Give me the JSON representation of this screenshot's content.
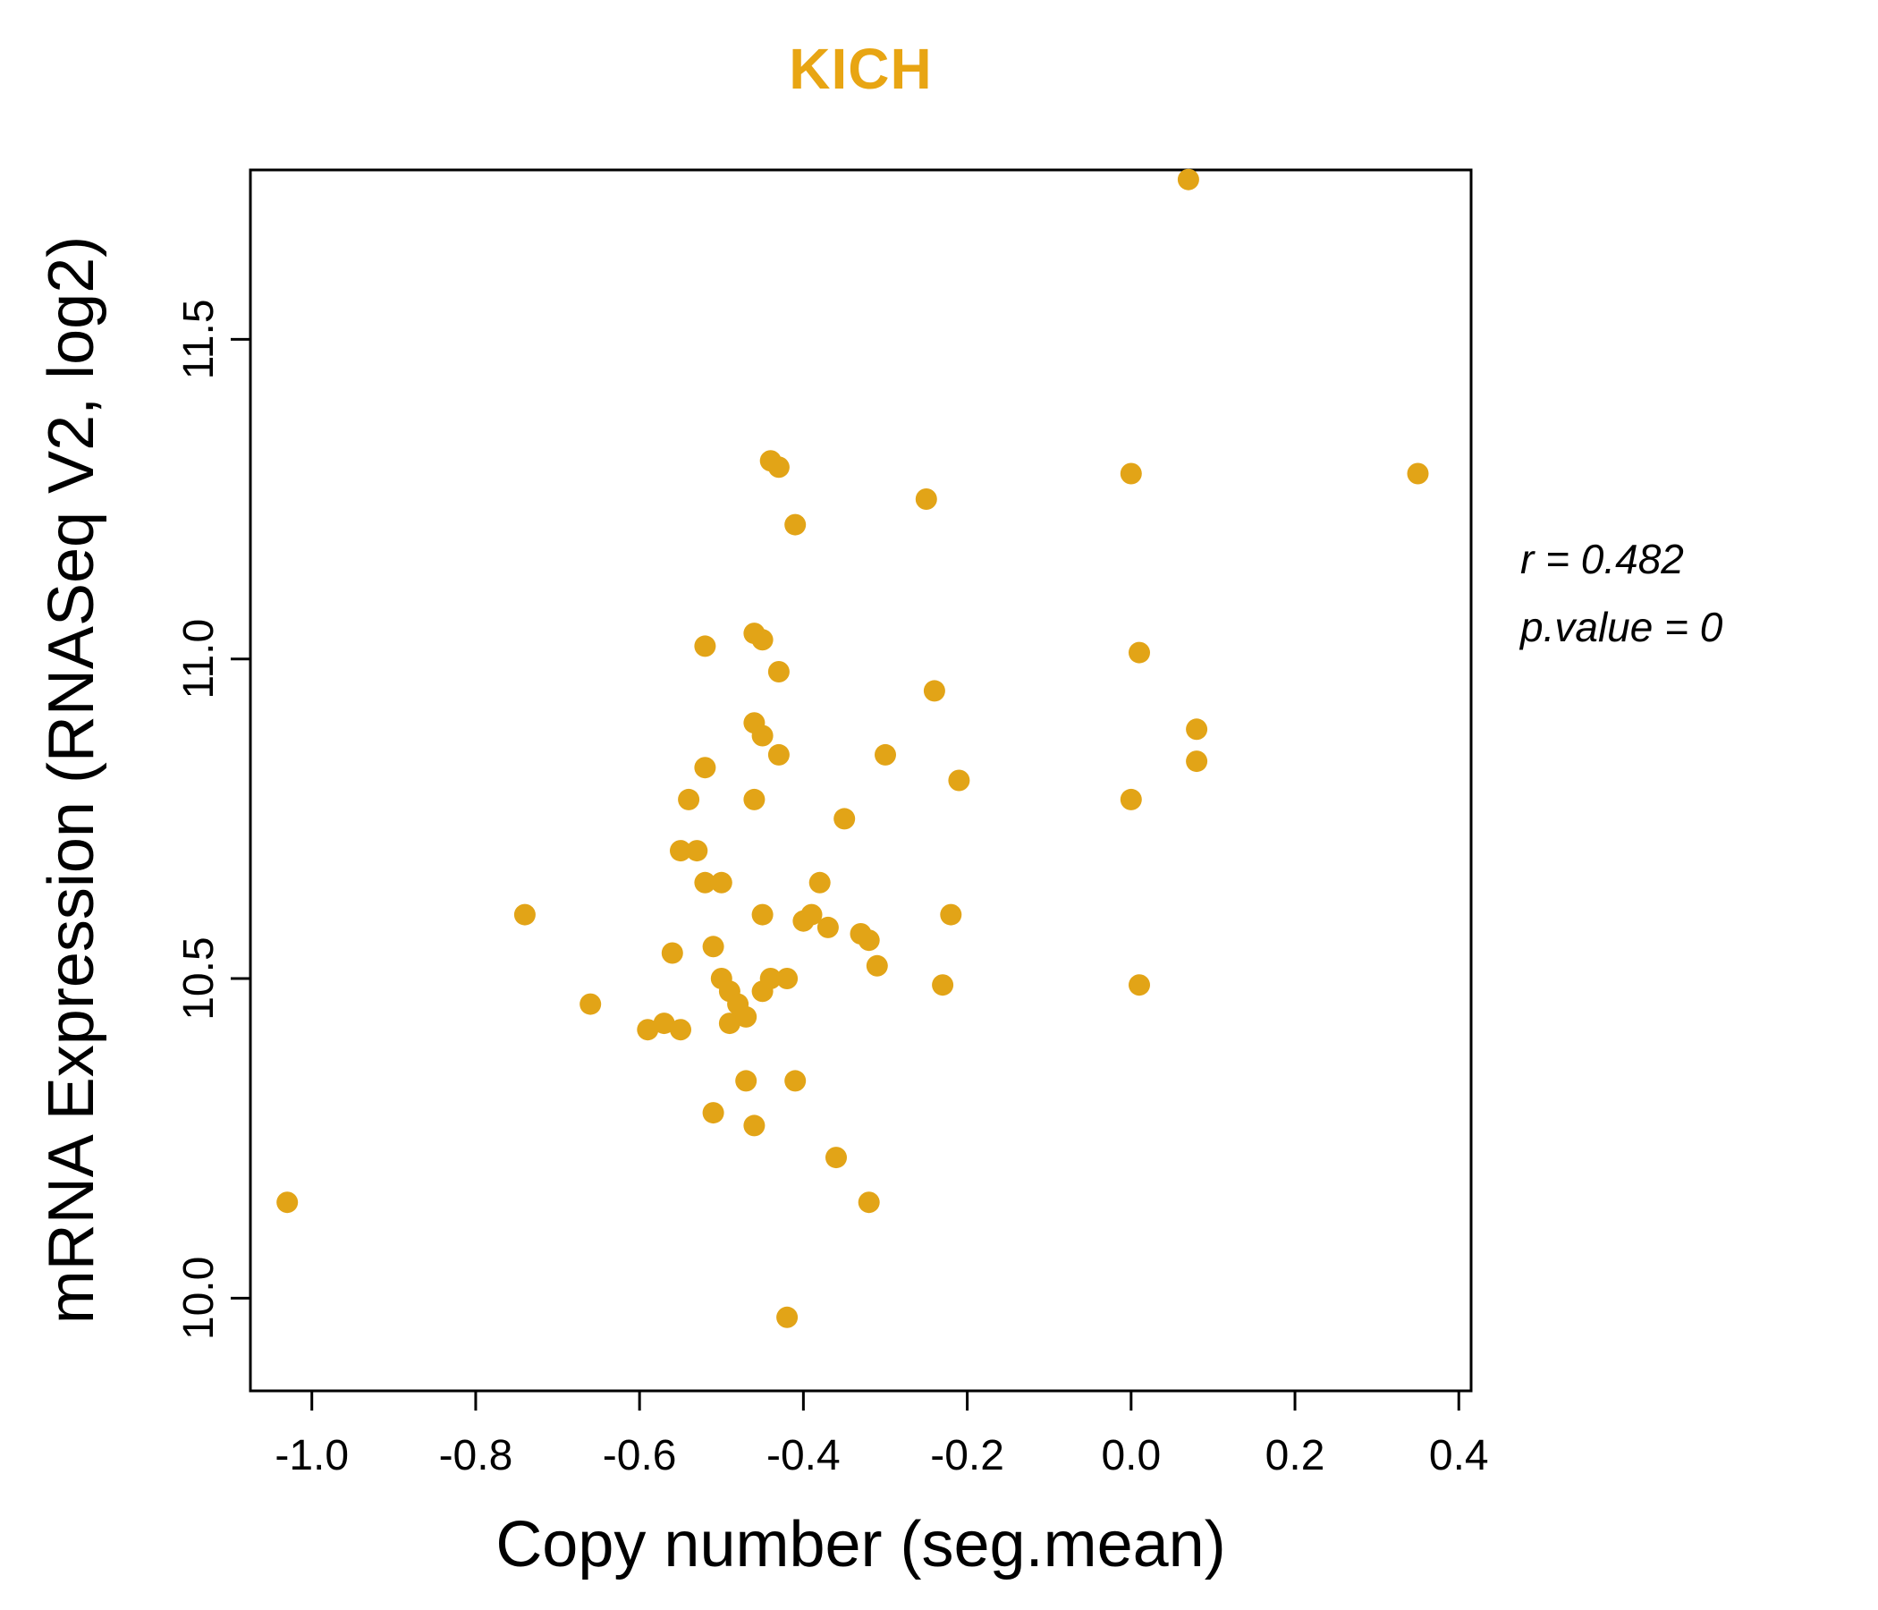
{
  "chart_data": {
    "type": "scatter",
    "title": "KICH",
    "xlabel": "Copy number (seg.mean)",
    "ylabel": "mRNA Expression (RNASeq V2, log2)",
    "xlim": [
      -1.075,
      0.415
    ],
    "ylim": [
      9.855,
      11.765
    ],
    "xtick_values": [
      -1.0,
      -0.8,
      -0.6,
      -0.4,
      -0.2,
      0.0,
      0.2,
      0.4
    ],
    "xtick_labels": [
      "-1.0",
      "-0.8",
      "-0.6",
      "-0.4",
      "-0.2",
      "0.0",
      "0.2",
      "0.4"
    ],
    "ytick_values": [
      10.0,
      10.5,
      11.0,
      11.5
    ],
    "ytick_labels": [
      "10.0",
      "10.5",
      "11.0",
      "11.5"
    ],
    "grid": false,
    "legend": "none",
    "point_color": "#E2A417",
    "title_color": "#E8A513",
    "axis_color": "#000000",
    "annotation": {
      "r_label": "r = 0.482",
      "p_label": "p.value = 0"
    },
    "points": [
      [
        -1.03,
        10.15
      ],
      [
        -0.74,
        10.6
      ],
      [
        -0.66,
        10.46
      ],
      [
        -0.59,
        10.42
      ],
      [
        -0.57,
        10.43
      ],
      [
        -0.56,
        10.54
      ],
      [
        -0.55,
        10.7
      ],
      [
        -0.55,
        10.42
      ],
      [
        -0.54,
        10.78
      ],
      [
        -0.53,
        10.7
      ],
      [
        -0.52,
        11.02
      ],
      [
        -0.52,
        10.83
      ],
      [
        -0.52,
        10.65
      ],
      [
        -0.51,
        10.55
      ],
      [
        -0.51,
        10.29
      ],
      [
        -0.5,
        10.65
      ],
      [
        -0.5,
        10.5
      ],
      [
        -0.49,
        10.48
      ],
      [
        -0.49,
        10.43
      ],
      [
        -0.48,
        10.46
      ],
      [
        -0.47,
        10.44
      ],
      [
        -0.47,
        10.34
      ],
      [
        -0.46,
        11.04
      ],
      [
        -0.46,
        10.9
      ],
      [
        -0.46,
        10.78
      ],
      [
        -0.46,
        10.27
      ],
      [
        -0.45,
        11.03
      ],
      [
        -0.45,
        10.88
      ],
      [
        -0.45,
        10.6
      ],
      [
        -0.45,
        10.48
      ],
      [
        -0.44,
        11.31
      ],
      [
        -0.44,
        10.5
      ],
      [
        -0.43,
        11.3
      ],
      [
        -0.43,
        10.98
      ],
      [
        -0.43,
        10.85
      ],
      [
        -0.42,
        10.5
      ],
      [
        -0.42,
        9.97
      ],
      [
        -0.41,
        11.21
      ],
      [
        -0.41,
        10.34
      ],
      [
        -0.4,
        10.59
      ],
      [
        -0.39,
        10.6
      ],
      [
        -0.38,
        10.65
      ],
      [
        -0.37,
        10.58
      ],
      [
        -0.36,
        10.22
      ],
      [
        -0.35,
        10.75
      ],
      [
        -0.33,
        10.57
      ],
      [
        -0.32,
        10.56
      ],
      [
        -0.32,
        10.15
      ],
      [
        -0.31,
        10.52
      ],
      [
        -0.3,
        10.85
      ],
      [
        -0.25,
        11.25
      ],
      [
        -0.24,
        10.95
      ],
      [
        -0.23,
        10.49
      ],
      [
        -0.22,
        10.6
      ],
      [
        -0.21,
        10.81
      ],
      [
        0.0,
        11.29
      ],
      [
        0.0,
        10.78
      ],
      [
        0.01,
        11.01
      ],
      [
        0.01,
        10.49
      ],
      [
        0.07,
        11.75
      ],
      [
        0.08,
        10.89
      ],
      [
        0.08,
        10.84
      ],
      [
        0.35,
        11.29
      ]
    ]
  }
}
